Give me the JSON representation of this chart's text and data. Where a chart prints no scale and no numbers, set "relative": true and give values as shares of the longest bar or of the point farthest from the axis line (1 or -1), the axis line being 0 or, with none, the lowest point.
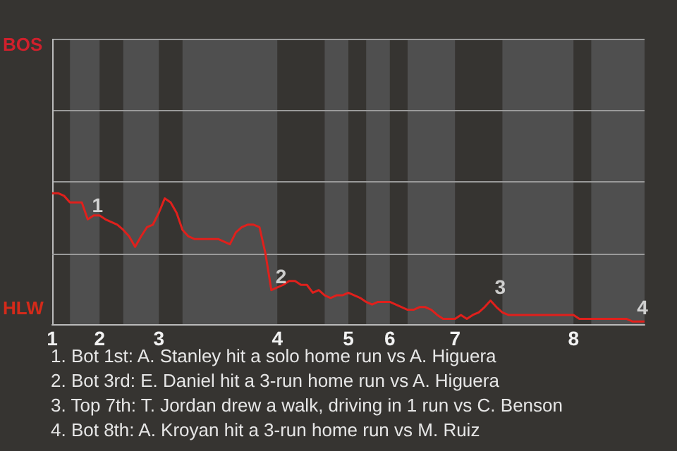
{
  "chart_data": {
    "type": "line",
    "relative": true,
    "categories": [
      "1",
      null,
      null,
      null,
      null,
      null,
      null,
      null,
      "2",
      null,
      null,
      null,
      null,
      null,
      null,
      null,
      null,
      null,
      "3",
      null,
      null,
      null,
      null,
      null,
      null,
      null,
      null,
      null,
      null,
      null,
      null,
      null,
      null,
      null,
      null,
      null,
      null,
      null,
      "4",
      null,
      null,
      null,
      null,
      null,
      null,
      null,
      null,
      null,
      null,
      null,
      "5",
      null,
      null,
      null,
      null,
      null,
      null,
      "6",
      null,
      null,
      null,
      null,
      null,
      null,
      null,
      null,
      null,
      null,
      "7",
      null,
      null,
      null,
      null,
      null,
      null,
      null,
      null,
      null,
      null,
      null,
      null,
      null,
      null,
      null,
      null,
      null,
      null,
      null,
      "8",
      null,
      null,
      null,
      null,
      null,
      null,
      null,
      null,
      null,
      null,
      null,
      null
    ],
    "series": [
      {
        "color": "#e0201c",
        "values": [
          1,
          1,
          0.98,
          0.93,
          0.93,
          0.93,
          0.8,
          0.83,
          0.83,
          0.8,
          0.78,
          0.76,
          0.72,
          0.67,
          0.59,
          0.67,
          0.74,
          0.76,
          0.85,
          0.96,
          0.93,
          0.85,
          0.72,
          0.67,
          0.65,
          0.65,
          0.65,
          0.65,
          0.65,
          0.63,
          0.61,
          0.7,
          0.74,
          0.76,
          0.76,
          0.74,
          0.54,
          0.26,
          0.28,
          0.3,
          0.33,
          0.33,
          0.3,
          0.3,
          0.24,
          0.26,
          0.22,
          0.2,
          0.22,
          0.22,
          0.24,
          0.22,
          0.2,
          0.17,
          0.15,
          0.17,
          0.17,
          0.17,
          0.15,
          0.13,
          0.11,
          0.11,
          0.13,
          0.13,
          0.11,
          0.07,
          0.04,
          0.04,
          0.04,
          0.07,
          0.04,
          0.07,
          0.09,
          0.13,
          0.18,
          0.13,
          0.09,
          0.07,
          0.07,
          0.07,
          0.07,
          0.07,
          0.07,
          0.07,
          0.07,
          0.07,
          0.07,
          0.07,
          0.07,
          0.04,
          0.04,
          0.04,
          0.04,
          0.04,
          0.04,
          0.04,
          0.04,
          0.04,
          0.02,
          0.02,
          0.02
        ]
      }
    ],
    "marker": "none",
    "ref_lines": [
      {
        "axis": "y",
        "value": 0.54,
        "color": "#9a9a9a"
      }
    ],
    "annotations": [
      "BOS",
      "HLW",
      {
        "text": "1",
        "y": 0.8
      },
      {
        "text": "2",
        "y": 0.26
      },
      {
        "text": "3",
        "y": 0.18
      },
      {
        "text": "4",
        "y": 0.02
      },
      "1. Bot 1st: A. Stanley hit a solo home run vs A. Higuera",
      "2. Bot 3rd: E. Daniel hit a 3-run home run vs A. Higuera",
      "3. Top 7th: T. Jordan drew a walk, driving in 1 run vs C. Benson",
      "4. Bot 8th: A. Kroyan hit a 3-run home run vs M. Ruiz"
    ]
  }
}
